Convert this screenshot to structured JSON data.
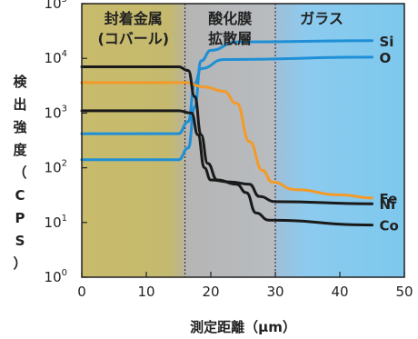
{
  "chart_data": {
    "type": "line",
    "xlabel": "測定距離（μm）",
    "ylabel": "検出強度（CPS）",
    "xlim": [
      0,
      50
    ],
    "ylim": [
      1,
      100000
    ],
    "yscale": "log",
    "x_ticks": [
      "0",
      "10",
      "20",
      "30",
      "40",
      "50"
    ],
    "y_ticks": [
      {
        "base": "10",
        "exp": "0"
      },
      {
        "base": "10",
        "exp": "1"
      },
      {
        "base": "10",
        "exp": "2"
      },
      {
        "base": "10",
        "exp": "3"
      },
      {
        "base": "10",
        "exp": "4"
      },
      {
        "base": "10",
        "exp": "5"
      }
    ],
    "regions": [
      {
        "lines": [
          "封着金属",
          "(コバール)"
        ],
        "x_start": 0,
        "x_end": 16,
        "color": "#c7b86a"
      },
      {
        "lines": [
          "酸化膜",
          "拡散層"
        ],
        "x_start": 16,
        "x_end": 30,
        "color": "#b3b3b3"
      },
      {
        "lines": [
          "ガラス"
        ],
        "x_start": 30,
        "x_end": 50,
        "color": "#7ec9ee"
      }
    ],
    "series": [
      {
        "name": "Si",
        "color": "#1f8fd6",
        "points": [
          [
            0,
            140
          ],
          [
            15,
            140
          ],
          [
            16.5,
            230
          ],
          [
            17.5,
            1300
          ],
          [
            18.5,
            9000
          ],
          [
            20,
            14000
          ],
          [
            24,
            20000
          ],
          [
            45,
            21000
          ]
        ]
      },
      {
        "name": "O",
        "color": "#1f8fd6",
        "points": [
          [
            0,
            420
          ],
          [
            15,
            420
          ],
          [
            16.5,
            700
          ],
          [
            17.5,
            3500
          ],
          [
            18.5,
            6500
          ],
          [
            22,
            9500
          ],
          [
            45,
            10500
          ]
        ]
      },
      {
        "name": "Fe",
        "color": "#f39a29",
        "points": [
          [
            0,
            3600
          ],
          [
            16,
            3600
          ],
          [
            19,
            3000
          ],
          [
            22,
            2500
          ],
          [
            24,
            1500
          ],
          [
            26,
            300
          ],
          [
            28,
            90
          ],
          [
            29.5,
            55
          ],
          [
            33,
            40
          ],
          [
            40,
            32
          ],
          [
            45,
            28
          ]
        ]
      },
      {
        "name": "Ni",
        "color": "#1a1a1a",
        "points": [
          [
            0,
            1100
          ],
          [
            15,
            1100
          ],
          [
            17,
            1000
          ],
          [
            18,
            400
          ],
          [
            19,
            100
          ],
          [
            20,
            60
          ],
          [
            23,
            55
          ],
          [
            26,
            50
          ],
          [
            27.5,
            30
          ],
          [
            30,
            24
          ],
          [
            45,
            22
          ]
        ]
      },
      {
        "name": "Co",
        "color": "#1a1a1a",
        "points": [
          [
            0,
            7000
          ],
          [
            15,
            7000
          ],
          [
            16.5,
            6000
          ],
          [
            17.5,
            2000
          ],
          [
            18.5,
            400
          ],
          [
            19.5,
            120
          ],
          [
            21,
            60
          ],
          [
            24,
            50
          ],
          [
            25.5,
            35
          ],
          [
            27,
            15
          ],
          [
            29,
            11
          ],
          [
            45,
            9
          ]
        ]
      }
    ]
  }
}
